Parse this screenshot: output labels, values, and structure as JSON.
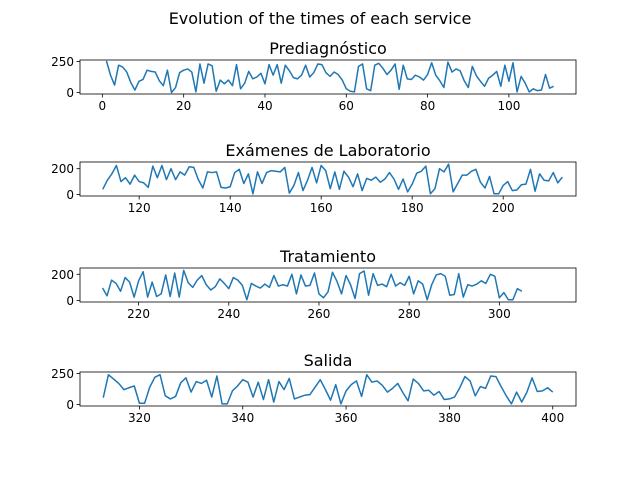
{
  "figure": {
    "suptitle": "Evolution of the times of each service"
  },
  "chart_data": [
    {
      "type": "line",
      "title": "Prediagnóstico",
      "xlim": [
        -5.5,
        116.5
      ],
      "ylim": [
        -12,
        262
      ],
      "xticks": [
        0,
        20,
        40,
        60,
        80,
        100
      ],
      "yticks": [
        0,
        250
      ],
      "color": "#1f77b4",
      "x_start": 1,
      "y": [
        255,
        140,
        60,
        220,
        205,
        165,
        80,
        20,
        90,
        105,
        180,
        170,
        165,
        95,
        55,
        180,
        0,
        40,
        160,
        180,
        190,
        165,
        5,
        230,
        75,
        230,
        215,
        10,
        100,
        70,
        100,
        55,
        225,
        30,
        75,
        170,
        110,
        125,
        155,
        70,
        225,
        140,
        225,
        75,
        220,
        175,
        120,
        110,
        140,
        220,
        125,
        160,
        230,
        225,
        160,
        130,
        165,
        145,
        100,
        30,
        10,
        5,
        210,
        230,
        30,
        15,
        220,
        235,
        195,
        145,
        180,
        230,
        25,
        220,
        110,
        105,
        140,
        125,
        100,
        145,
        240,
        140,
        95,
        40,
        245,
        165,
        190,
        175,
        95,
        40,
        210,
        135,
        90,
        50,
        115,
        140,
        170,
        50,
        220,
        90,
        240,
        5,
        130,
        75,
        5,
        30,
        15,
        20,
        145,
        35,
        50
      ]
    },
    {
      "type": "line",
      "title": "Exámenes de Laboratorio",
      "xlim": [
        107,
        216
      ],
      "ylim": [
        -12,
        252
      ],
      "xticks": [
        120,
        140,
        160,
        180,
        200
      ],
      "yticks": [
        0,
        200
      ],
      "color": "#1f77b4",
      "x_start": 112,
      "y": [
        40,
        110,
        160,
        225,
        100,
        130,
        80,
        150,
        100,
        90,
        55,
        220,
        130,
        225,
        115,
        200,
        115,
        175,
        150,
        215,
        210,
        115,
        50,
        175,
        170,
        175,
        55,
        50,
        60,
        170,
        195,
        85,
        160,
        5,
        175,
        85,
        170,
        185,
        180,
        175,
        210,
        10,
        70,
        170,
        30,
        110,
        210,
        90,
        225,
        185,
        45,
        175,
        40,
        180,
        135,
        60,
        160,
        30,
        125,
        110,
        135,
        95,
        120,
        170,
        120,
        40,
        120,
        20,
        80,
        165,
        180,
        220,
        5,
        45,
        200,
        175,
        235,
        20,
        85,
        150,
        150,
        180,
        195,
        95,
        50,
        140,
        5,
        5,
        70,
        100,
        30,
        35,
        75,
        80,
        195,
        25,
        160,
        110,
        105,
        170,
        90,
        135
      ]
    },
    {
      "type": "line",
      "title": "Tratamiento",
      "xlim": [
        207,
        317
      ],
      "ylim": [
        -12,
        248
      ],
      "xticks": [
        220,
        240,
        260,
        280,
        300
      ],
      "yticks": [
        0,
        200
      ],
      "color": "#1f77b4",
      "x_start": 212,
      "y": [
        95,
        35,
        155,
        130,
        70,
        175,
        140,
        25,
        150,
        220,
        25,
        140,
        30,
        50,
        195,
        30,
        210,
        25,
        230,
        135,
        100,
        155,
        190,
        120,
        80,
        105,
        165,
        130,
        90,
        175,
        155,
        115,
        5,
        130,
        110,
        95,
        125,
        100,
        190,
        110,
        120,
        110,
        200,
        50,
        195,
        110,
        115,
        210,
        50,
        20,
        65,
        215,
        145,
        50,
        190,
        120,
        15,
        205,
        225,
        40,
        205,
        115,
        125,
        105,
        200,
        110,
        135,
        115,
        185,
        50,
        150,
        125,
        5,
        120,
        195,
        205,
        185,
        40,
        45,
        205,
        25,
        120,
        110,
        125,
        150,
        130,
        200,
        185,
        20,
        60,
        5,
        5,
        90,
        70
      ]
    },
    {
      "type": "line",
      "title": "Salida",
      "xlim": [
        308.5,
        404.5
      ],
      "ylim": [
        -12,
        262
      ],
      "xticks": [
        320,
        340,
        360,
        380,
        400
      ],
      "yticks": [
        0,
        250
      ],
      "color": "#1f77b4",
      "x_start": 313,
      "y": [
        55,
        240,
        205,
        170,
        120,
        135,
        150,
        10,
        10,
        140,
        220,
        240,
        70,
        45,
        65,
        175,
        215,
        100,
        185,
        170,
        195,
        60,
        230,
        5,
        5,
        110,
        150,
        200,
        180,
        60,
        180,
        40,
        200,
        20,
        185,
        120,
        210,
        45,
        60,
        75,
        80,
        140,
        200,
        120,
        35,
        160,
        5,
        110,
        160,
        190,
        65,
        240,
        180,
        190,
        155,
        100,
        130,
        170,
        95,
        30,
        205,
        170,
        110,
        115,
        75,
        105,
        40,
        45,
        60,
        135,
        225,
        190,
        70,
        145,
        130,
        230,
        225,
        145,
        70,
        5,
        100,
        20,
        100,
        215,
        105,
        110,
        135,
        100
      ]
    }
  ]
}
